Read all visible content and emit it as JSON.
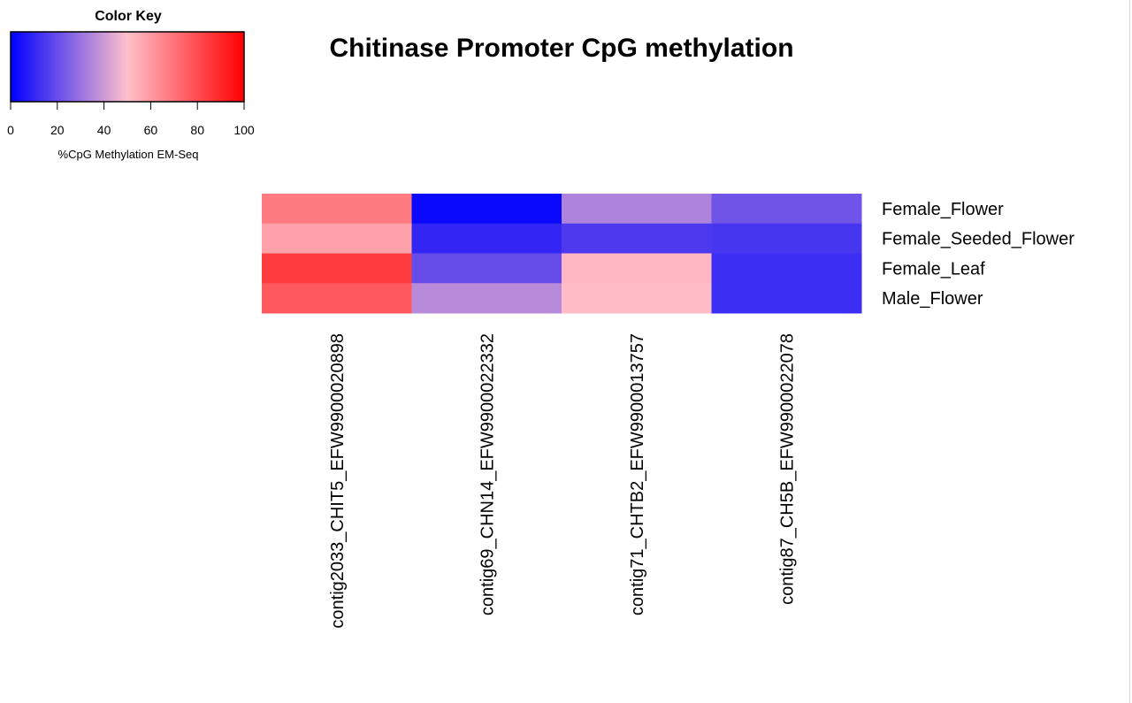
{
  "chart_data": {
    "type": "heatmap",
    "title": "Chitinase Promoter CpG methylation",
    "color_key": {
      "title": "Color Key",
      "label": "%CpG Methylation EM-Seq",
      "ticks": [
        0,
        20,
        40,
        60,
        80,
        100
      ],
      "range": [
        0,
        100
      ],
      "colors": [
        "#0000ff",
        "#ffc0cb",
        "#ff0000"
      ]
    },
    "columns": [
      "contig2033_CHIT5_EFW9900020898",
      "contig69_CHN14_EFW9900022332",
      "contig71_CHTB2_EFW9900013757",
      "contig87_CH5B_EFW9900022078"
    ],
    "rows": [
      "Female_Flower",
      "Female_Seeded_Flower",
      "Female_Leaf",
      "Male_Flower"
    ],
    "values": [
      [
        68,
        2,
        34,
        22
      ],
      [
        58,
        10,
        15,
        14
      ],
      [
        84,
        20,
        52,
        12
      ],
      [
        77,
        36,
        51,
        12
      ]
    ],
    "grid": false
  }
}
